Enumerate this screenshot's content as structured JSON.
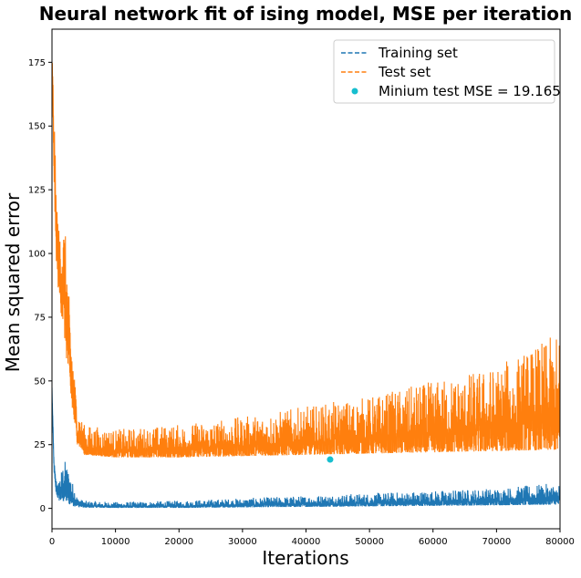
{
  "chart_data": {
    "type": "line",
    "title": "Neural network fit of ising model, MSE per iteration",
    "xlabel": "Iterations",
    "ylabel": "Mean squared error",
    "xlim": [
      0,
      80000
    ],
    "ylim": [
      -8,
      188
    ],
    "x_ticks": [
      0,
      10000,
      20000,
      30000,
      40000,
      50000,
      60000,
      70000,
      80000
    ],
    "y_ticks": [
      0,
      25,
      50,
      75,
      100,
      125,
      150,
      175
    ],
    "grid": false,
    "legend_position": "top-right",
    "series": [
      {
        "name": "Training set",
        "color": "#1f77b4",
        "style": "dashed",
        "x": [
          0,
          300,
          600,
          1000,
          1500,
          2000,
          3000,
          4000,
          5000,
          10000,
          20000,
          30000,
          40000,
          50000,
          60000,
          70000,
          80000
        ],
        "y_low": [
          46,
          15,
          6,
          3,
          2,
          2,
          1,
          0.5,
          0.3,
          0.2,
          0.2,
          0.4,
          0.6,
          0.8,
          1,
          1.2,
          1.5
        ],
        "y_high": [
          48,
          20,
          12,
          10,
          15,
          19,
          12,
          4,
          3,
          2.5,
          3,
          4,
          5,
          6,
          7,
          8,
          10
        ]
      },
      {
        "name": "Test set",
        "color": "#ff7f0e",
        "style": "dashed",
        "x": [
          0,
          300,
          600,
          1000,
          1500,
          2000,
          3000,
          4000,
          5000,
          10000,
          20000,
          30000,
          40000,
          50000,
          60000,
          70000,
          80000
        ],
        "y_low": [
          170,
          130,
          100,
          85,
          75,
          65,
          40,
          25,
          21,
          20,
          20,
          20.5,
          21,
          21.5,
          22,
          22.5,
          23
        ],
        "y_high": [
          181,
          160,
          130,
          110,
          110,
          112,
          70,
          38,
          33,
          31,
          33,
          36,
          40,
          44,
          50,
          56,
          69
        ]
      },
      {
        "name": "Minium test MSE = 19.165",
        "color": "#17becf",
        "style": "marker",
        "x": [
          43800
        ],
        "y": [
          19.165
        ]
      }
    ]
  }
}
